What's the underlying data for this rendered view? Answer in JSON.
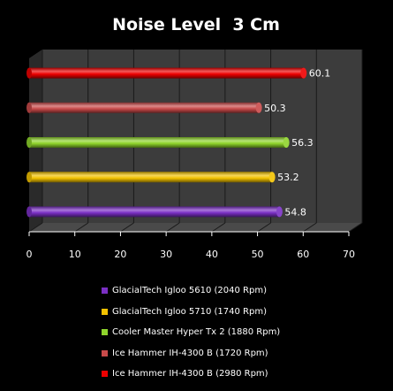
{
  "chart_data": {
    "type": "bar",
    "orientation": "horizontal",
    "title": "Noise Level  3 Cm",
    "xlim": [
      0,
      70
    ],
    "xticks": [
      "0",
      "10",
      "20",
      "30",
      "40",
      "50",
      "60",
      "70"
    ],
    "grid": true,
    "legend_position": "bottom",
    "series": [
      {
        "name": "GlacialTech Igloo 5610 (2040 Rpm)",
        "value": 54.8,
        "label": "54.8",
        "color": "#7a2fc4"
      },
      {
        "name": "GlacialTech Igloo 5710 (1740 Rpm)",
        "value": 53.2,
        "label": "53.2",
        "color": "#f2c200"
      },
      {
        "name": "Cooler Master Hyper Tx 2 (1880 Rpm)",
        "value": 56.3,
        "label": "56.3",
        "color": "#8fd42c"
      },
      {
        "name": "Ice Hammer  IH-4300 B (1720 Rpm)",
        "value": 50.3,
        "label": "50.3",
        "color": "#c84a4a"
      },
      {
        "name": "Ice Hammer  IH-4300 B (2980 Rpm)",
        "value": 60.1,
        "label": "60.1",
        "color": "#ee0000"
      }
    ]
  }
}
